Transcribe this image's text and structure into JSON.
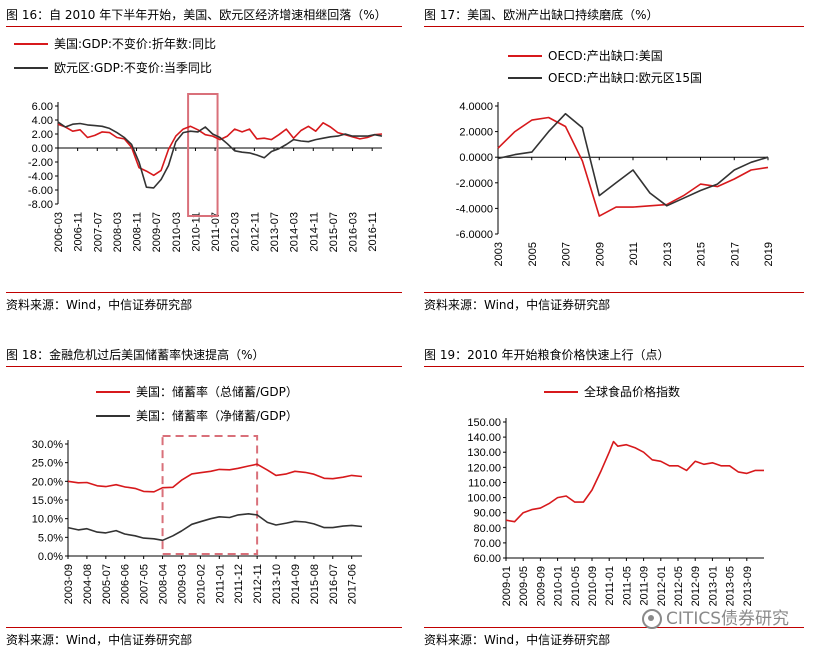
{
  "panels": [
    {
      "title": "图 16：自 2010 年下半年开始，美国、欧元区经济增速相继回落（%）",
      "source": "资料来源：Wind，中信证券研究部"
    },
    {
      "title": "图 17：美国、欧洲产出缺口持续磨底（%）",
      "source": "资料来源：Wind，中信证券研究部"
    },
    {
      "title": "图 18：金融危机过后美国储蓄率快速提高（%）",
      "source": "资料来源：Wind，中信证券研究部"
    },
    {
      "title": "图 19：2010 年开始粮食价格快速上行（点）",
      "source": "资料来源：Wind，中信证券研究部"
    }
  ],
  "watermark": "CITICS债券研究",
  "colors": {
    "red": "#d7191c",
    "dark": "#333333",
    "rule": "#c00000",
    "highlight": "#d9707a"
  },
  "chart_data": [
    {
      "type": "line",
      "title": "",
      "x_ticks": [
        "2006-03",
        "2006-11",
        "2007-07",
        "2008-03",
        "2008-11",
        "2009-07",
        "2010-03",
        "2010-11",
        "2011-07",
        "2012-03",
        "2012-11",
        "2013-07",
        "2014-03",
        "2014-11",
        "2015-07",
        "2016-03",
        "2016-11"
      ],
      "y_ticks": [
        "6.00",
        "4.00",
        "2.00",
        "0.00",
        "-2.00",
        "-4.00",
        "-6.00",
        "-8.00"
      ],
      "ylim": [
        -8,
        6
      ],
      "legend_placement": "top-left",
      "highlight_box": {
        "from": "2010-08",
        "to": "2011-08"
      },
      "series": [
        {
          "name": "美国:GDP:不变价:折年数:同比",
          "color": "#d7191c",
          "x": [
            "2006-03",
            "2006-06",
            "2006-09",
            "2006-12",
            "2007-03",
            "2007-06",
            "2007-09",
            "2007-12",
            "2008-03",
            "2008-06",
            "2008-09",
            "2008-12",
            "2009-03",
            "2009-06",
            "2009-09",
            "2009-12",
            "2010-03",
            "2010-06",
            "2010-09",
            "2010-12",
            "2011-03",
            "2011-06",
            "2011-09",
            "2011-12",
            "2012-03",
            "2012-06",
            "2012-09",
            "2012-12",
            "2013-03",
            "2013-06",
            "2013-09",
            "2013-12",
            "2014-03",
            "2014-06",
            "2014-09",
            "2014-12",
            "2015-03",
            "2015-06",
            "2015-09",
            "2015-12",
            "2016-03",
            "2016-06",
            "2016-09",
            "2016-12",
            "2017-03"
          ],
          "values": [
            3.4,
            3.0,
            2.4,
            2.6,
            1.5,
            1.8,
            2.3,
            2.2,
            1.5,
            1.3,
            0.1,
            -2.8,
            -3.3,
            -3.9,
            -3.2,
            -0.2,
            1.7,
            2.7,
            3.1,
            2.6,
            1.9,
            1.7,
            1.2,
            1.7,
            2.7,
            2.3,
            2.7,
            1.3,
            1.4,
            1.2,
            1.9,
            2.7,
            1.4,
            2.5,
            3.1,
            2.4,
            3.6,
            3.0,
            2.2,
            1.9,
            1.6,
            1.3,
            1.5,
            1.9,
            2.0
          ]
        },
        {
          "name": "欧元区:GDP:不变价:当季同比",
          "color": "#333333",
          "x": [
            "2006-03",
            "2006-06",
            "2006-09",
            "2006-12",
            "2007-03",
            "2007-06",
            "2007-09",
            "2007-12",
            "2008-03",
            "2008-06",
            "2008-09",
            "2008-12",
            "2009-03",
            "2009-06",
            "2009-09",
            "2009-12",
            "2010-03",
            "2010-06",
            "2010-09",
            "2010-12",
            "2011-03",
            "2011-06",
            "2011-09",
            "2011-12",
            "2012-03",
            "2012-06",
            "2012-09",
            "2012-12",
            "2013-03",
            "2013-06",
            "2013-09",
            "2013-12",
            "2014-03",
            "2014-06",
            "2014-09",
            "2014-12",
            "2015-03",
            "2015-06",
            "2015-09",
            "2015-12",
            "2016-03",
            "2016-06",
            "2016-09",
            "2016-12",
            "2017-03"
          ],
          "values": [
            3.7,
            3.0,
            3.4,
            3.5,
            3.3,
            3.2,
            3.1,
            2.8,
            2.2,
            1.5,
            0.5,
            -2.0,
            -5.6,
            -5.7,
            -4.5,
            -2.5,
            0.9,
            2.2,
            2.4,
            2.3,
            3.0,
            2.0,
            1.5,
            0.6,
            -0.4,
            -0.6,
            -0.7,
            -1.0,
            -1.4,
            -0.5,
            -0.1,
            0.5,
            1.2,
            1.0,
            0.9,
            1.2,
            1.4,
            1.6,
            1.7,
            2.0,
            1.7,
            1.7,
            1.7,
            1.9,
            1.7
          ]
        }
      ]
    },
    {
      "type": "line",
      "title": "",
      "x": [
        2003,
        2004,
        2005,
        2006,
        2007,
        2008,
        2009,
        2010,
        2011,
        2012,
        2013,
        2014,
        2015,
        2016,
        2017,
        2018,
        2019
      ],
      "x_ticks": [
        "2003",
        "2005",
        "2007",
        "2009",
        "2011",
        "2013",
        "2015",
        "2017",
        "2019"
      ],
      "y_ticks": [
        "4.0000",
        "2.0000",
        "0.0000",
        "-2.0000",
        "-4.0000",
        "-6.0000"
      ],
      "ylim": [
        -6,
        4
      ],
      "legend_placement": "top-left",
      "series": [
        {
          "name": "OECD:产出缺口:美国",
          "color": "#d7191c",
          "values": [
            0.7,
            2.0,
            2.9,
            3.1,
            2.4,
            -0.3,
            -4.6,
            -3.9,
            -3.9,
            -3.8,
            -3.7,
            -3.0,
            -2.1,
            -2.3,
            -1.7,
            -1.0,
            -0.8
          ]
        },
        {
          "name": "OECD:产出缺口:欧元区15国",
          "color": "#333333",
          "values": [
            -0.1,
            0.2,
            0.4,
            2.0,
            3.4,
            2.3,
            -3.0,
            -2.0,
            -1.0,
            -2.8,
            -3.8,
            -3.2,
            -2.6,
            -2.1,
            -1.0,
            -0.4,
            0.0
          ]
        }
      ]
    },
    {
      "type": "line",
      "title": "",
      "x_ticks": [
        "2003-09",
        "2004-08",
        "2005-07",
        "2006-06",
        "2007-05",
        "2008-04",
        "2009-03",
        "2010-02",
        "2011-01",
        "2011-12",
        "2012-11",
        "2013-10",
        "2014-09",
        "2015-08",
        "2016-07",
        "2017-06"
      ],
      "y_ticks": [
        "30.0%",
        "25.0%",
        "20.0%",
        "15.0%",
        "10.0%",
        "5.0%",
        "0.0%"
      ],
      "ylim": [
        0,
        30
      ],
      "legend_placement": "top-left",
      "highlight_box": {
        "from": "2008-04",
        "to": "2012-11"
      },
      "series": [
        {
          "name": "美国：储蓄率（总储蓄/GDP）",
          "color": "#d7191c",
          "x": [
            "2003-09",
            "2004-03",
            "2004-08",
            "2005-02",
            "2005-07",
            "2006-01",
            "2006-06",
            "2006-12",
            "2007-05",
            "2007-11",
            "2008-04",
            "2008-10",
            "2009-03",
            "2009-09",
            "2010-02",
            "2010-08",
            "2011-01",
            "2011-07",
            "2011-12",
            "2012-06",
            "2012-11",
            "2013-05",
            "2013-10",
            "2014-04",
            "2014-09",
            "2015-03",
            "2015-08",
            "2016-02",
            "2016-07",
            "2017-01",
            "2017-06",
            "2017-12"
          ],
          "values": [
            20.0,
            19.6,
            19.7,
            18.8,
            18.6,
            19.1,
            18.5,
            18.1,
            17.3,
            17.2,
            18.3,
            18.4,
            20.3,
            22.0,
            22.3,
            22.7,
            23.2,
            23.1,
            23.5,
            24.1,
            24.6,
            23.0,
            21.6,
            22.0,
            22.7,
            22.4,
            21.9,
            20.8,
            20.7,
            21.1,
            21.6,
            21.3
          ]
        },
        {
          "name": "美国：储蓄率（净储蓄/GDP）",
          "color": "#333333",
          "x": [
            "2003-09",
            "2004-03",
            "2004-08",
            "2005-02",
            "2005-07",
            "2006-01",
            "2006-06",
            "2006-12",
            "2007-05",
            "2007-11",
            "2008-04",
            "2008-10",
            "2009-03",
            "2009-09",
            "2010-02",
            "2010-08",
            "2011-01",
            "2011-07",
            "2011-12",
            "2012-06",
            "2012-11",
            "2013-05",
            "2013-10",
            "2014-04",
            "2014-09",
            "2015-03",
            "2015-08",
            "2016-02",
            "2016-07",
            "2017-01",
            "2017-06",
            "2017-12"
          ],
          "values": [
            7.6,
            7.0,
            7.3,
            6.4,
            6.2,
            6.8,
            5.9,
            5.4,
            4.8,
            4.6,
            4.2,
            5.4,
            6.7,
            8.5,
            9.2,
            10.0,
            10.5,
            10.3,
            11.0,
            11.3,
            11.0,
            9.0,
            8.3,
            8.8,
            9.3,
            9.1,
            8.6,
            7.6,
            7.6,
            8.0,
            8.2,
            7.9
          ]
        }
      ]
    },
    {
      "type": "line",
      "title": "",
      "x_ticks": [
        "2009-01",
        "2009-05",
        "2009-09",
        "2010-01",
        "2010-05",
        "2010-09",
        "2011-01",
        "2011-05",
        "2011-09",
        "2012-01",
        "2012-05",
        "2012-09",
        "2013-01",
        "2013-05",
        "2013-09"
      ],
      "y_ticks": [
        "150.00",
        "140.00",
        "130.00",
        "120.00",
        "110.00",
        "100.00",
        "90.00",
        "80.00",
        "70.00",
        "60.00"
      ],
      "ylim": [
        60,
        150
      ],
      "legend_placement": "top-left",
      "series": [
        {
          "name": "全球食品价格指数",
          "color": "#d7191c",
          "x": [
            "2009-01",
            "2009-03",
            "2009-05",
            "2009-07",
            "2009-09",
            "2009-11",
            "2010-01",
            "2010-03",
            "2010-05",
            "2010-07",
            "2010-09",
            "2010-11",
            "2011-01",
            "2011-02",
            "2011-03",
            "2011-05",
            "2011-07",
            "2011-09",
            "2011-11",
            "2012-01",
            "2012-03",
            "2012-05",
            "2012-07",
            "2012-09",
            "2012-11",
            "2013-01",
            "2013-03",
            "2013-05",
            "2013-07",
            "2013-09",
            "2013-11",
            "2014-01"
          ],
          "values": [
            85,
            84,
            90,
            92,
            93,
            96,
            100,
            101,
            97,
            97,
            105,
            117,
            130,
            137,
            134,
            135,
            133,
            130,
            125,
            124,
            121,
            121,
            118,
            124,
            122,
            123,
            121,
            121,
            117,
            116,
            118,
            118
          ]
        }
      ]
    }
  ]
}
